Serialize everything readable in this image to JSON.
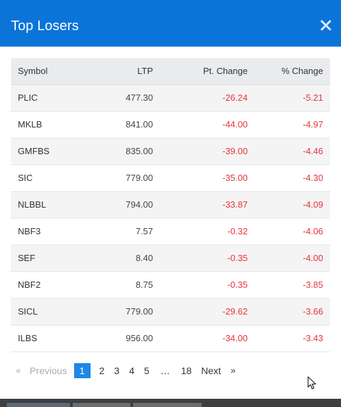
{
  "modal": {
    "title": "Top Losers",
    "close_glyph": "×"
  },
  "table": {
    "headers": {
      "symbol": "Symbol",
      "ltp": "LTP",
      "pt_change": "Pt. Change",
      "pct_change": "% Change"
    },
    "rows": [
      {
        "symbol": "PLIC",
        "ltp": "477.30",
        "pt_change": "-26.24",
        "pct_change": "-5.21"
      },
      {
        "symbol": "MKLB",
        "ltp": "841.00",
        "pt_change": "-44.00",
        "pct_change": "-4.97"
      },
      {
        "symbol": "GMFBS",
        "ltp": "835.00",
        "pt_change": "-39.00",
        "pct_change": "-4.46"
      },
      {
        "symbol": "SIC",
        "ltp": "779.00",
        "pt_change": "-35.00",
        "pct_change": "-4.30"
      },
      {
        "symbol": "NLBBL",
        "ltp": "794.00",
        "pt_change": "-33.87",
        "pct_change": "-4.09"
      },
      {
        "symbol": "NBF3",
        "ltp": "7.57",
        "pt_change": "-0.32",
        "pct_change": "-4.06"
      },
      {
        "symbol": "SEF",
        "ltp": "8.40",
        "pt_change": "-0.35",
        "pct_change": "-4.00"
      },
      {
        "symbol": "NBF2",
        "ltp": "8.75",
        "pt_change": "-0.35",
        "pct_change": "-3.85"
      },
      {
        "symbol": "SICL",
        "ltp": "779.00",
        "pt_change": "-29.62",
        "pct_change": "-3.66"
      },
      {
        "symbol": "ILBS",
        "ltp": "956.00",
        "pt_change": "-34.00",
        "pct_change": "-3.43"
      }
    ]
  },
  "pagination": {
    "prev_arrow": "«",
    "prev_label": "Previous",
    "pages": [
      "1",
      "2",
      "3",
      "4",
      "5"
    ],
    "active_page": "1",
    "ellipsis": "…",
    "last_page": "18",
    "next_label": "Next",
    "next_arrow": "»"
  },
  "colors": {
    "header_bg": "#0a74d9",
    "negative": "#e8333a",
    "active_page": "#1e88e5"
  },
  "icons": {
    "close": "close-icon",
    "cursor": "mouse-pointer-icon"
  }
}
